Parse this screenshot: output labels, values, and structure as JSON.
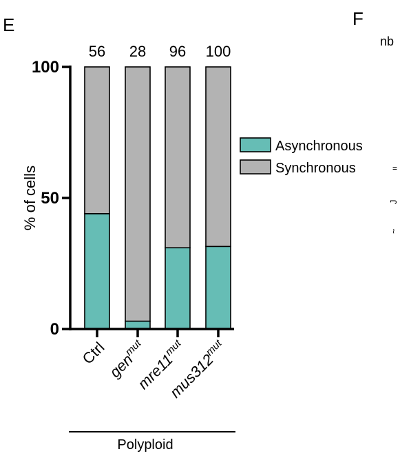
{
  "panels": {
    "left": "E",
    "right": "F",
    "right_fragment": "nb"
  },
  "chart_data": {
    "type": "bar",
    "stacked": true,
    "categories": [
      "Ctrl",
      "gen",
      "mre11",
      "mus312"
    ],
    "category_superscripts": [
      "",
      "mut",
      "mut",
      "mut"
    ],
    "counts": [
      "56",
      "28",
      "96",
      "100"
    ],
    "series": [
      {
        "name": "Asynchronous",
        "values": [
          44,
          3,
          31,
          31.5
        ],
        "color": "#66bdb5"
      },
      {
        "name": "Synchronous",
        "values": [
          56,
          97,
          69,
          68.5
        ],
        "color": "#b3b3b3"
      }
    ],
    "ylabel": "% of cells",
    "ylim": [
      0,
      100
    ],
    "yticks": [
      "0",
      "50",
      "100"
    ],
    "group_label": "Polyploid",
    "legend_position": "right",
    "grid": false
  }
}
